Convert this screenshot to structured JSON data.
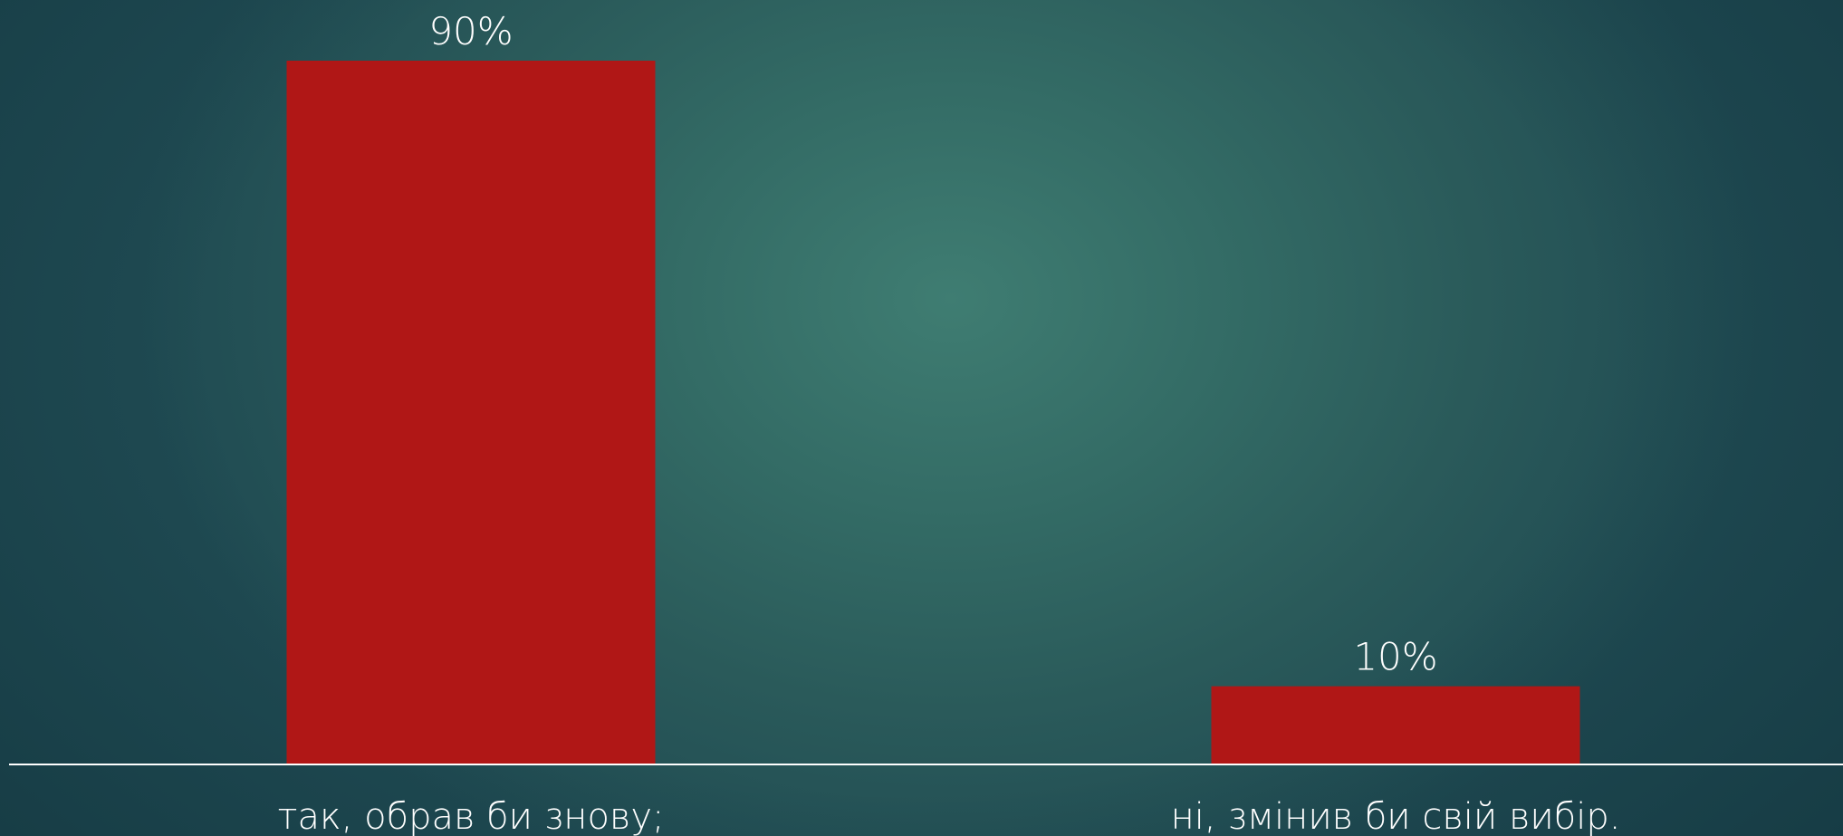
{
  "chart_data": {
    "type": "bar",
    "categories": [
      "так, обрав би знову;",
      "ні, змінив би свій вибір."
    ],
    "values": [
      90,
      10
    ],
    "data_labels": [
      "90%",
      "10%"
    ],
    "title": "",
    "xlabel": "",
    "ylabel": "",
    "ylim": [
      0,
      90
    ],
    "grid": false,
    "legend": "none",
    "bar_color": "#b01716",
    "axis_color": "#ffffff",
    "text_color": "#ffffff"
  }
}
